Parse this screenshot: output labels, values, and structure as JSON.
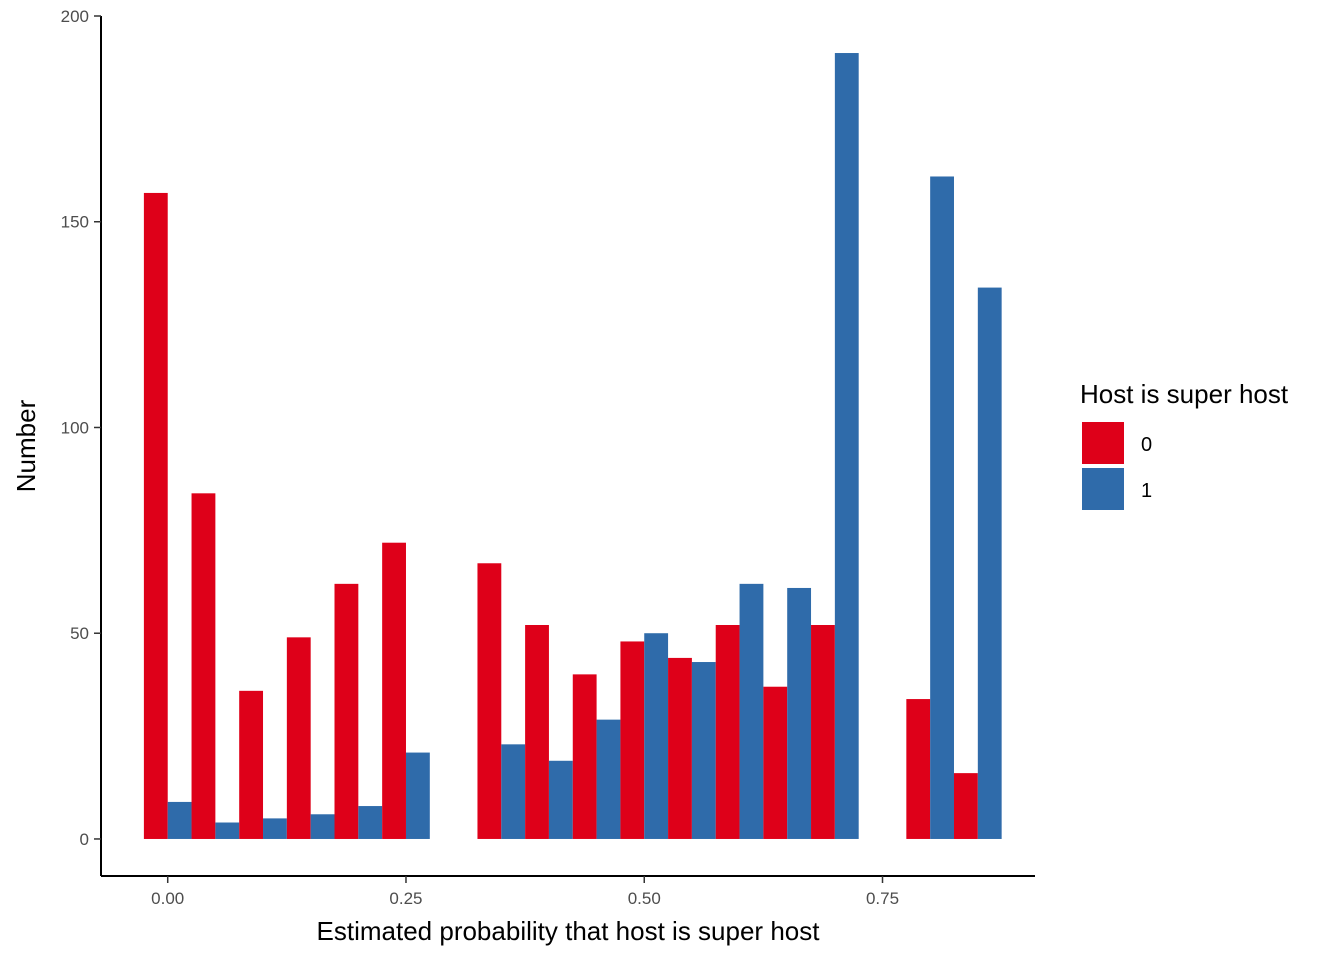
{
  "chart_data": {
    "type": "bar",
    "xlabel": "Estimated probability that host is super host",
    "ylabel": "Number",
    "xlim": [
      -0.07,
      0.91
    ],
    "ylim": [
      -9,
      200
    ],
    "x_ticks": [
      0.0,
      0.25,
      0.5,
      0.75
    ],
    "x_tick_labels": [
      "0.00",
      "0.25",
      "0.50",
      "0.75"
    ],
    "y_ticks": [
      0,
      50,
      100,
      150,
      200
    ],
    "y_tick_labels": [
      "0",
      "50",
      "100",
      "150",
      "200"
    ],
    "bin_width": 0.05,
    "grid": false,
    "legend": {
      "title": "Host is super host",
      "position": "right",
      "entries": [
        {
          "label": "0",
          "color": "#DE0019"
        },
        {
          "label": "1",
          "color": "#2F6BAA"
        }
      ]
    },
    "bin_centers": [
      0.0,
      0.05,
      0.1,
      0.15,
      0.2,
      0.25,
      0.35,
      0.4,
      0.45,
      0.5,
      0.55,
      0.6,
      0.65,
      0.7,
      0.8,
      0.85
    ],
    "series": [
      {
        "name": "0",
        "color": "#DE0019",
        "values": [
          157,
          84,
          36,
          49,
          62,
          72,
          67,
          52,
          40,
          48,
          44,
          52,
          37,
          52,
          34,
          16
        ]
      },
      {
        "name": "1",
        "color": "#2F6BAA",
        "values": [
          9,
          4,
          5,
          6,
          8,
          21,
          23,
          19,
          29,
          50,
          43,
          62,
          61,
          191,
          161,
          134
        ]
      }
    ]
  }
}
